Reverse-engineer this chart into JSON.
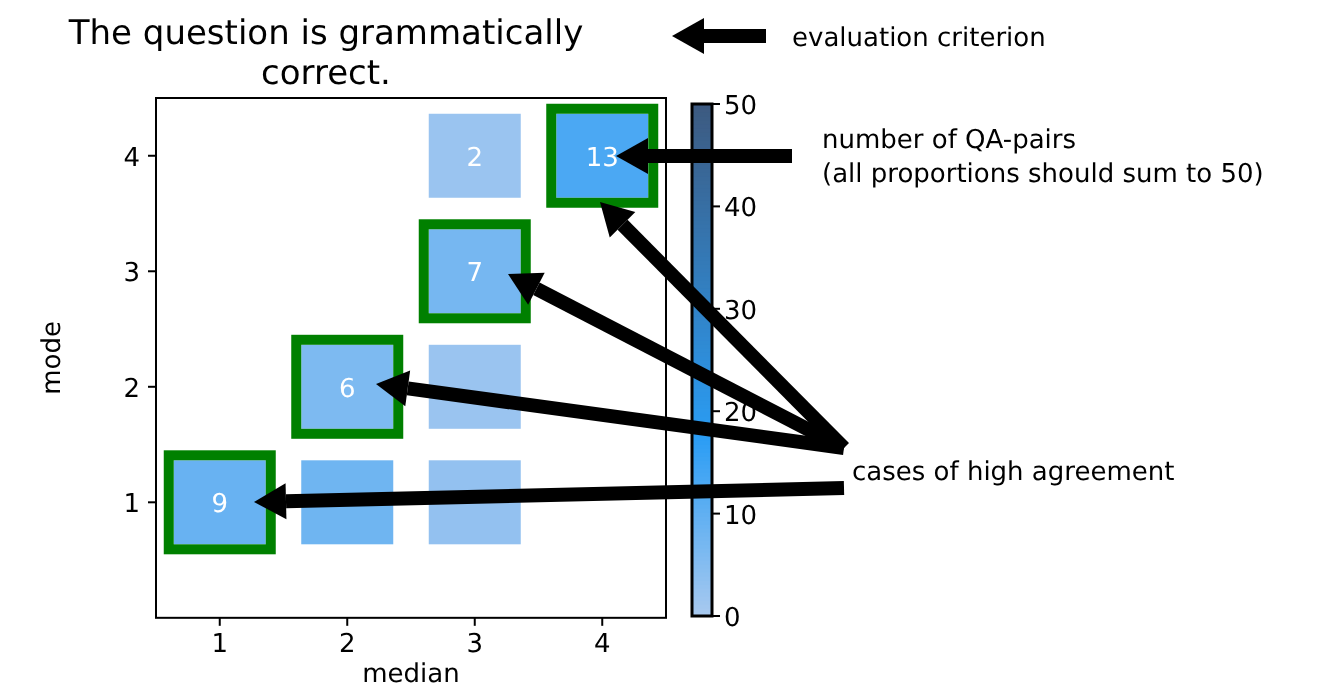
{
  "chart_data": {
    "type": "heatmap",
    "title": "The question is grammatically\ncorrect.",
    "xlabel": "median",
    "ylabel": "mode",
    "clabel": "number of QA-pairs\n(all proportions should sum to 50)",
    "annotations": [
      "evaluation criterion",
      "cases of high agreement"
    ],
    "categories": [
      "1",
      "2",
      "3",
      "4"
    ],
    "y_categories": [
      "4",
      "3",
      "2",
      "1"
    ],
    "cells": [
      [
        null,
        null,
        2,
        13
      ],
      [
        null,
        null,
        7,
        null
      ],
      [
        null,
        6,
        2,
        null
      ],
      [
        9,
        8,
        3,
        null
      ]
    ],
    "cell_labels": [
      [
        null,
        null,
        "2",
        "13"
      ],
      [
        null,
        null,
        "7",
        null
      ],
      [
        null,
        "6",
        null,
        null
      ],
      [
        "9",
        null,
        null,
        null
      ]
    ],
    "clim": [
      0,
      50
    ],
    "cticks": [
      0,
      10,
      20,
      30,
      40,
      50
    ]
  }
}
